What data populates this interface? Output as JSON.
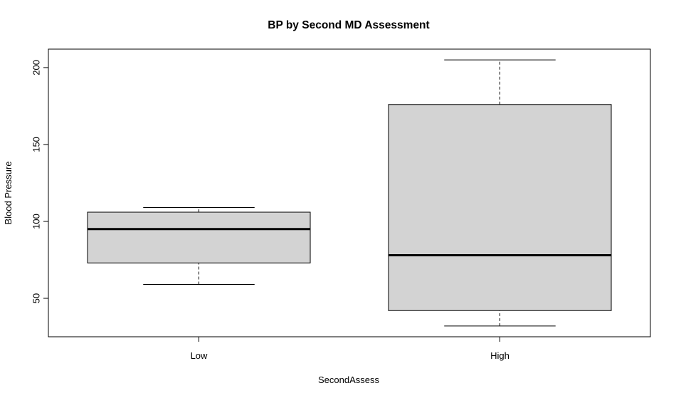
{
  "chart_data": {
    "type": "box",
    "title": "BP by Second MD Assessment",
    "xlabel": "SecondAssess",
    "ylabel": "Blood Pressure",
    "categories": [
      "Low",
      "High"
    ],
    "yticks": [
      50,
      100,
      150,
      200
    ],
    "ylim": [
      25,
      212
    ],
    "grid": false,
    "boxes": [
      {
        "category": "Low",
        "whisker_low": 59,
        "q1": 73,
        "median": 95,
        "q3": 106,
        "whisker_high": 109
      },
      {
        "category": "High",
        "whisker_low": 32,
        "q1": 42,
        "median": 78,
        "q3": 176,
        "whisker_high": 205
      }
    ],
    "colors": {
      "box_fill": "#d3d3d3",
      "stroke": "#000000"
    }
  }
}
